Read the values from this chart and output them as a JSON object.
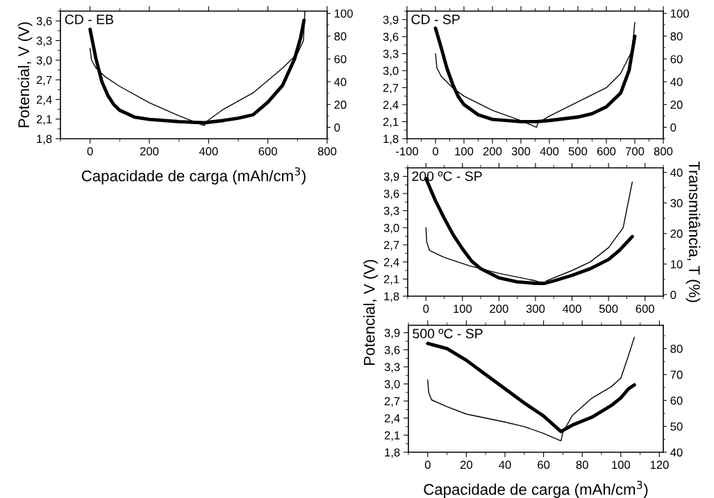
{
  "chart_data": [
    {
      "type": "line",
      "xlabel": "Capacidade de carga (mAh/cm$^{3}$)",
      "ylabel": "Potencial, V (V)",
      "annotations": [
        "CD - EB"
      ],
      "xlim": [
        -100,
        800
      ],
      "xticks": [
        0,
        200,
        400,
        600,
        800
      ],
      "ylim": [
        1.8,
        3.75
      ],
      "yticks": [
        {
          "value": 1.8,
          "label": "1,8"
        },
        {
          "value": 2.1,
          "label": "2,1"
        },
        {
          "value": 2.4,
          "label": "2,4"
        },
        {
          "value": 2.7,
          "label": "2,7"
        },
        {
          "value": 3.0,
          "label": "3,0"
        },
        {
          "value": 3.3,
          "label": "3,3"
        },
        {
          "value": 3.6,
          "label": "3,6"
        }
      ],
      "y2lim": [
        -10,
        102
      ],
      "y2ticks": [
        0,
        20,
        40,
        60,
        80,
        100
      ],
      "grid": false,
      "legend": false,
      "series": [
        {
          "color": "#000000",
          "x": [
            0,
            5,
            20,
            50,
            100,
            200,
            300,
            385,
            395,
            450,
            550,
            650,
            700,
            720,
            725
          ],
          "values": [
            3.18,
            3.0,
            2.88,
            2.75,
            2.6,
            2.35,
            2.15,
            2.0,
            2.07,
            2.25,
            2.5,
            2.88,
            3.1,
            3.3,
            3.75
          ]
        },
        {
          "color": "#000000",
          "axis": "y2",
          "x": [
            0,
            20,
            40,
            60,
            80,
            100,
            150,
            200,
            300,
            385,
            450,
            500,
            550,
            600,
            650,
            690,
            710,
            722
          ],
          "values": [
            86,
            60,
            40,
            28,
            20,
            15,
            9,
            7,
            5,
            4,
            6,
            8,
            11,
            22,
            37,
            60,
            78,
            94
          ]
        }
      ]
    },
    {
      "type": "line",
      "annotations": [
        "CD - SP"
      ],
      "xlim": [
        -100,
        800
      ],
      "xticks": [
        -100,
        0,
        100,
        200,
        300,
        400,
        500,
        600,
        700,
        800
      ],
      "ylim": [
        1.8,
        4.05
      ],
      "yticks": [
        {
          "value": 1.8,
          "label": "1,8"
        },
        {
          "value": 2.1,
          "label": "2,1"
        },
        {
          "value": 2.4,
          "label": "2,4"
        },
        {
          "value": 2.7,
          "label": "2,7"
        },
        {
          "value": 3.0,
          "label": "3,0"
        },
        {
          "value": 3.3,
          "label": "3,3"
        },
        {
          "value": 3.6,
          "label": "3,6"
        },
        {
          "value": 3.9,
          "label": "3,9"
        }
      ],
      "y2lim": [
        -10,
        102
      ],
      "y2ticks": [
        0,
        20,
        40,
        60,
        80,
        100
      ],
      "grid": false,
      "legend": false,
      "series": [
        {
          "color": "#000000",
          "x": [
            0,
            5,
            20,
            60,
            100,
            200,
            300,
            355,
            360,
            400,
            500,
            600,
            650,
            690,
            700
          ],
          "values": [
            3.3,
            3.05,
            2.9,
            2.7,
            2.55,
            2.3,
            2.12,
            2.0,
            2.08,
            2.2,
            2.45,
            2.7,
            2.95,
            3.35,
            3.85
          ]
        },
        {
          "color": "#000000",
          "axis": "y2",
          "x": [
            0,
            20,
            40,
            60,
            80,
            100,
            150,
            200,
            300,
            355,
            400,
            500,
            550,
            600,
            650,
            680,
            700
          ],
          "values": [
            87,
            70,
            52,
            38,
            27,
            20,
            11,
            7,
            5,
            5,
            6,
            9,
            12,
            18,
            30,
            50,
            80
          ]
        }
      ]
    },
    {
      "type": "line",
      "y2label": "Transmitância, T (%)",
      "annotations": [
        "200 ºC - SP"
      ],
      "xlim": [
        -50,
        650
      ],
      "xticks": [
        0,
        100,
        200,
        300,
        400,
        500,
        600
      ],
      "ylim": [
        1.8,
        4.05
      ],
      "yticks": [
        {
          "value": 1.8,
          "label": "1,8"
        },
        {
          "value": 2.1,
          "label": "2,1"
        },
        {
          "value": 2.4,
          "label": "2,4"
        },
        {
          "value": 2.7,
          "label": "2,7"
        },
        {
          "value": 3.0,
          "label": "3,0"
        },
        {
          "value": 3.3,
          "label": "3,3"
        },
        {
          "value": 3.6,
          "label": "3,6"
        },
        {
          "value": 3.9,
          "label": "3,9"
        }
      ],
      "y2lim": [
        -0.5,
        41.5
      ],
      "y2ticks": [
        0,
        10,
        20,
        30,
        40
      ],
      "grid": false,
      "legend": false,
      "series": [
        {
          "color": "#000000",
          "x": [
            0,
            2,
            10,
            50,
            120,
            200,
            300,
            325,
            330,
            400,
            450,
            500,
            540,
            565
          ],
          "values": [
            3.0,
            2.75,
            2.6,
            2.48,
            2.33,
            2.2,
            2.07,
            2.02,
            2.07,
            2.25,
            2.4,
            2.65,
            3.0,
            3.8
          ]
        },
        {
          "color": "#000000",
          "axis": "y2",
          "x": [
            0,
            25,
            50,
            75,
            100,
            125,
            150,
            200,
            250,
            300,
            325,
            350,
            400,
            450,
            500,
            530,
            565
          ],
          "values": [
            38,
            31,
            25,
            19.5,
            15,
            11,
            8.5,
            5.5,
            4.2,
            3.7,
            3.7,
            4.5,
            6.3,
            8.5,
            11.5,
            14.5,
            19
          ]
        }
      ]
    },
    {
      "type": "line",
      "xlabel": "Capacidade de carga (mAh/cm$^{3}$)",
      "ylabel": "Potencial, V (V)",
      "annotations": [
        "500 ºC - SP"
      ],
      "xlim": [
        -10,
        122
      ],
      "xticks": [
        0,
        20,
        40,
        60,
        80,
        100,
        120
      ],
      "ylim": [
        1.8,
        4.03
      ],
      "yticks": [
        {
          "value": 1.8,
          "label": "1,8"
        },
        {
          "value": 2.1,
          "label": "2,1"
        },
        {
          "value": 2.4,
          "label": "2,4"
        },
        {
          "value": 2.7,
          "label": "2,7"
        },
        {
          "value": 3.0,
          "label": "3,0"
        },
        {
          "value": 3.3,
          "label": "3,3"
        },
        {
          "value": 3.6,
          "label": "3,6"
        },
        {
          "value": 3.9,
          "label": "3,9"
        }
      ],
      "y2lim": [
        40,
        89
      ],
      "y2ticks": [
        40,
        50,
        60,
        70,
        80
      ],
      "grid": false,
      "legend": false,
      "series": [
        {
          "color": "#000000",
          "x": [
            0,
            0.5,
            2,
            10,
            20,
            30,
            40,
            50,
            60,
            69,
            70,
            75,
            85,
            95,
            100,
            104,
            107
          ],
          "values": [
            3.07,
            2.85,
            2.72,
            2.6,
            2.47,
            2.4,
            2.33,
            2.25,
            2.13,
            2.0,
            2.15,
            2.45,
            2.75,
            2.95,
            3.1,
            3.5,
            3.82
          ]
        },
        {
          "color": "#000000",
          "axis": "y2",
          "x": [
            0,
            10,
            20,
            30,
            40,
            50,
            60,
            69,
            75,
            85,
            95,
            100,
            104,
            107
          ],
          "values": [
            82,
            80,
            75.5,
            70,
            64.5,
            59,
            54,
            48,
            50.5,
            53.5,
            58,
            61,
            64.5,
            66
          ]
        }
      ]
    }
  ]
}
